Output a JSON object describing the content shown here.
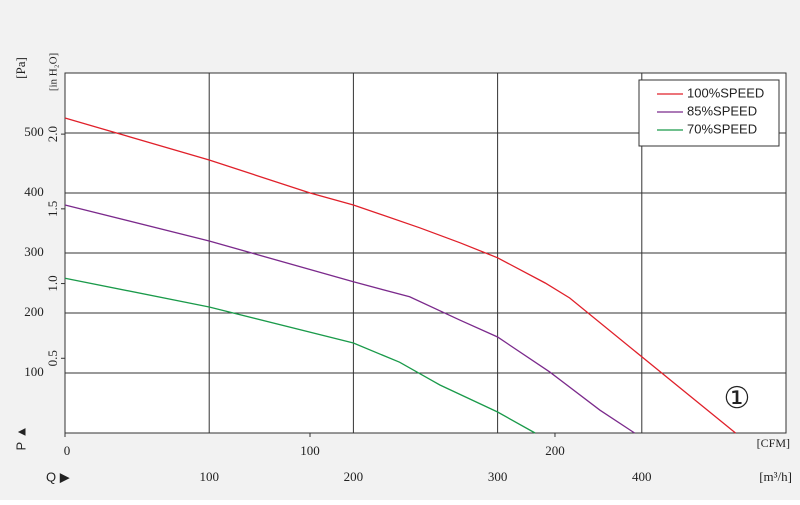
{
  "chart_data": {
    "type": "line",
    "x_label": "[m³/h]",
    "y_label": "[Pa]",
    "x2_label": "[CFM]",
    "y2_label": "[in H₂O]",
    "x_axis_marker": "Q ▶",
    "y_axis_marker": "P ▲",
    "annotation": "①",
    "xlim": [
      0,
      500
    ],
    "xticks": [
      100,
      200,
      300,
      400
    ],
    "ylim": [
      0,
      600
    ],
    "yticks": [
      100,
      200,
      300,
      400,
      500
    ],
    "x2lim": [
      0,
      294.3
    ],
    "x2ticks": [
      0,
      100,
      200
    ],
    "y2lim": [
      0,
      2.409
    ],
    "y2ticks": [
      {
        "value": 0.5,
        "label": "0.5"
      },
      {
        "value": 1.0,
        "label": "1.0"
      },
      {
        "value": 1.5,
        "label": "1.5"
      },
      {
        "value": 2.0,
        "label": "2.0"
      }
    ],
    "grid": true,
    "legend": "upper right",
    "series": [
      {
        "name": "100%SPEED",
        "color": "#e0202a",
        "x": [
          0,
          100,
          170,
          200,
          246,
          274,
          300,
          333,
          350,
          400,
          465
        ],
        "values": [
          525,
          455,
          400,
          380,
          342,
          317,
          292,
          250,
          225,
          127,
          0
        ]
      },
      {
        "name": "85%SPEED",
        "color": "#7b2a8c",
        "x": [
          0,
          100,
          200,
          239,
          274,
          300,
          336,
          371,
          395
        ],
        "values": [
          380,
          320,
          252,
          227,
          188,
          160,
          102,
          38,
          0
        ]
      },
      {
        "name": "70%SPEED",
        "color": "#1a9a4a",
        "x": [
          0,
          100,
          200,
          232,
          260,
          300,
          326
        ],
        "values": [
          258,
          210,
          150,
          118,
          80,
          35,
          0
        ]
      }
    ]
  }
}
